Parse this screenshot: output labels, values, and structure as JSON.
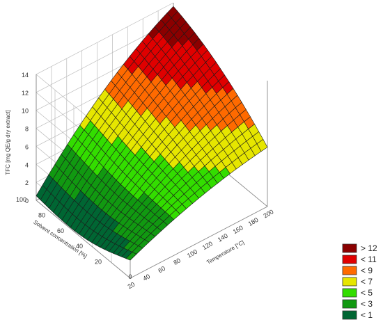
{
  "chart_data": {
    "type": "surface3d",
    "title": "",
    "z_label": "TFC [mg QE/g dry extract]",
    "x_label": "Temperature [°C]",
    "y_label": "Solvent concentration [%]",
    "z_ticks": [
      "0",
      "2",
      "4",
      "6",
      "8",
      "10",
      "12",
      "14"
    ],
    "x_ticks": [
      "20",
      "40",
      "60",
      "80",
      "100",
      "120",
      "140",
      "160",
      "180",
      "200"
    ],
    "x_axis_start_label": "0",
    "y_ticks": [
      "20",
      "40",
      "60",
      "80",
      "100"
    ],
    "x_range": [
      20,
      200
    ],
    "y_range": [
      0,
      100
    ],
    "z_range": [
      0,
      14
    ],
    "grid": true,
    "legend_position": "bottom-right",
    "surface_corner_values": {
      "T20_S0": 2.0,
      "T20_S100": 0.5,
      "T200_S0": 6.6,
      "T200_S100": 13.6
    },
    "legend": [
      {
        "label": "> 12",
        "color": "#8b0000"
      },
      {
        "label": "< 11",
        "color": "#e00000"
      },
      {
        "label": "< 9",
        "color": "#ff6a00"
      },
      {
        "label": "< 7",
        "color": "#e6e600"
      },
      {
        "label": "< 5",
        "color": "#33dd00"
      },
      {
        "label": "< 3",
        "color": "#119911"
      },
      {
        "label": "< 1",
        "color": "#006633"
      }
    ]
  }
}
